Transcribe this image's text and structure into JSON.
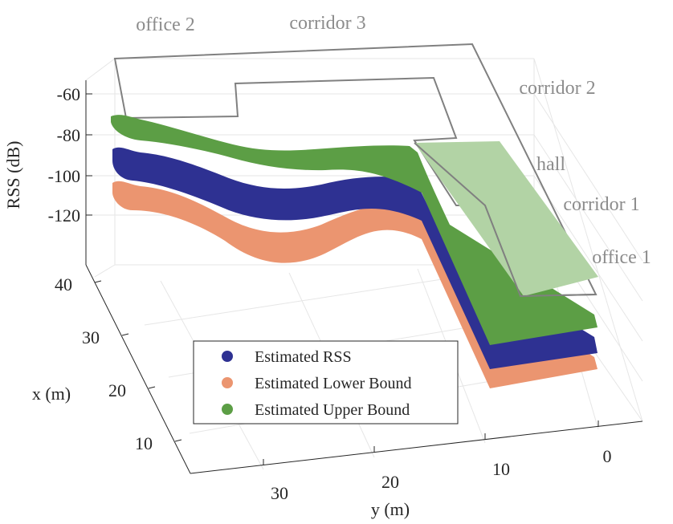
{
  "chart_data": {
    "type": "surface3d",
    "xlabel": "y (m)",
    "ylabel": "x (m)",
    "zlabel": "RSS (dB)",
    "y_ticks": [
      "30",
      "20",
      "10",
      "0"
    ],
    "x_ticks": [
      "40",
      "30",
      "20",
      "10"
    ],
    "z_ticks": [
      "-60",
      "-80",
      "-100",
      "-120"
    ],
    "area_labels": [
      "office 2",
      "corridor 3",
      "corridor 2",
      "hall",
      "corridor 1",
      "office 1"
    ],
    "legend": {
      "placement": "bottom-center",
      "entries": [
        {
          "label": "Estimated RSS",
          "color": "#2e3192"
        },
        {
          "label": "Estimated Lower Bound",
          "color": "#eb9570"
        },
        {
          "label": "Estimated Upper Bound",
          "color": "#5c9e45"
        }
      ]
    },
    "colors": {
      "rss": "#2e3192",
      "lower": "#eb9570",
      "upper": "#5c9e45",
      "upper_light": "#b2d3a5",
      "floorplan": "#808080"
    }
  }
}
